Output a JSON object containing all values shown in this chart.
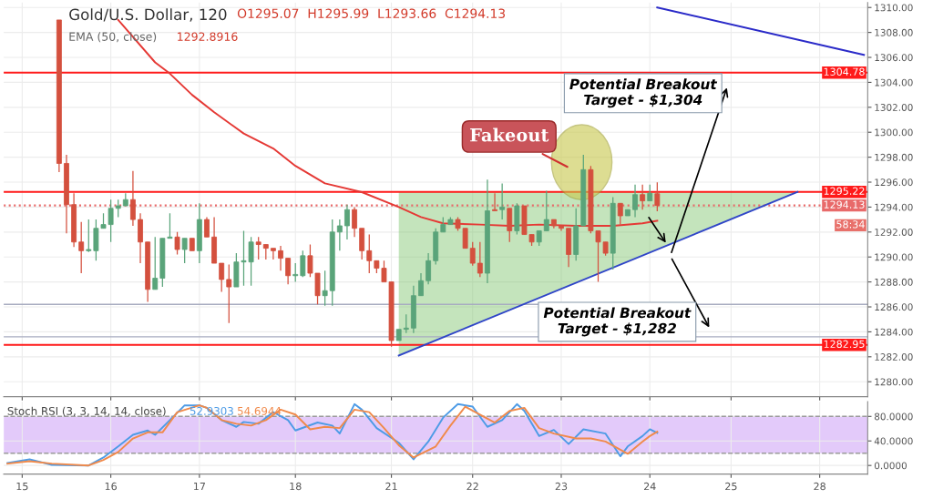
{
  "chart_data": [
    {
      "type": "candlestick",
      "title": "Gold/U.S. Dollar, 120",
      "categories": [
        null,
        null,
        "15",
        null,
        null,
        null,
        null,
        null,
        null,
        null,
        null,
        null,
        null,
        null,
        "16",
        null,
        null,
        null,
        null,
        null,
        null,
        null,
        null,
        null,
        null,
        null,
        "17",
        null,
        null,
        null,
        null,
        null,
        null,
        null,
        null,
        null,
        null,
        null,
        null,
        "18",
        null,
        null,
        null,
        null,
        null,
        null,
        null,
        null,
        null,
        null,
        null,
        null,
        "21",
        null,
        null,
        null,
        null,
        null,
        null,
        null,
        null,
        null,
        null,
        "22",
        null,
        null,
        null,
        null,
        null,
        null,
        null,
        null,
        null,
        null,
        null,
        "23",
        null,
        null,
        null,
        null,
        null,
        null,
        null,
        null,
        null,
        null,
        null,
        "24",
        null,
        null,
        null,
        null,
        null,
        null,
        null,
        null,
        null,
        null,
        "25",
        null,
        null,
        null,
        null,
        null,
        null,
        null,
        null,
        null,
        null,
        null,
        "28",
        null,
        null,
        null,
        null,
        null,
        null
      ],
      "ohlc": [
        null,
        null,
        null,
        null,
        null,
        null,
        null,
        [
          1309.0,
          1309.0,
          1296.8,
          1297.5
        ],
        [
          1297.5,
          1298.2,
          1291.9,
          1294.2
        ],
        [
          1294.2,
          1295.1,
          1290.8,
          1291.2
        ],
        [
          1291.2,
          1292.8,
          1288.7,
          1290.5
        ],
        [
          1290.5,
          1293.0,
          1290.4,
          1290.6
        ],
        [
          1290.5,
          1293.0,
          1289.7,
          1292.3
        ],
        [
          1292.3,
          1293.5,
          1292.3,
          1292.6
        ],
        [
          1292.6,
          1294.6,
          1291.2,
          1293.9
        ],
        [
          1293.9,
          1294.6,
          1293.2,
          1294.1
        ],
        [
          1294.1,
          1295.1,
          1294.1,
          1294.6
        ],
        [
          1294.6,
          1296.9,
          1292.5,
          1293.0
        ],
        [
          1293.0,
          1293.5,
          1289.5,
          1291.2
        ],
        [
          1291.2,
          1291.2,
          1286.4,
          1287.4
        ],
        [
          1287.4,
          1291.6,
          1287.4,
          1288.3
        ],
        [
          1288.3,
          1291.5,
          1287.6,
          1291.5
        ],
        [
          1291.5,
          1293.5,
          1291.5,
          1291.6
        ],
        [
          1291.6,
          1292.0,
          1290.2,
          1290.6
        ],
        [
          1290.6,
          1291.5,
          1289.5,
          1291.5
        ],
        [
          1291.5,
          1291.5,
          1290.5,
          1290.5
        ],
        [
          1290.5,
          1294.3,
          1289.5,
          1293.0
        ],
        [
          1293.0,
          1293.2,
          1291.6,
          1291.6
        ],
        [
          1291.6,
          1293.2,
          1289.5,
          1289.5
        ],
        [
          1289.5,
          1289.5,
          1287.2,
          1288.2
        ],
        [
          1288.2,
          1289.4,
          1284.7,
          1287.6
        ],
        [
          1287.6,
          1290.3,
          1287.6,
          1289.6
        ],
        [
          1289.6,
          1292.1,
          1287.7,
          1289.7
        ],
        [
          1289.6,
          1291.6,
          1287.7,
          1291.2
        ],
        [
          1291.2,
          1291.6,
          1289.8,
          1291.0
        ],
        [
          1291.0,
          1291.0,
          1289.8,
          1290.7
        ],
        [
          1290.7,
          1290.7,
          1289.8,
          1290.5
        ],
        [
          1290.5,
          1290.9,
          1288.9,
          1289.9
        ],
        [
          1289.9,
          1289.9,
          1287.8,
          1288.5
        ],
        [
          1288.5,
          1289.5,
          1288.0,
          1288.6
        ],
        [
          1288.5,
          1290.5,
          1288.4,
          1290.1
        ],
        [
          1290.1,
          1291.0,
          1288.4,
          1288.7
        ],
        [
          1288.7,
          1288.7,
          1286.2,
          1286.9
        ],
        [
          1286.9,
          1288.9,
          1286.1,
          1287.3
        ],
        [
          1287.3,
          1293.0,
          1286.1,
          1292.0
        ],
        [
          1292.0,
          1293.0,
          1290.5,
          1292.5
        ],
        [
          1292.5,
          1294.2,
          1291.4,
          1293.8
        ],
        [
          1293.8,
          1294.0,
          1291.6,
          1292.3
        ],
        [
          1292.3,
          1292.3,
          1289.8,
          1290.5
        ],
        [
          1290.5,
          1291.8,
          1288.7,
          1289.7
        ],
        [
          1289.7,
          1289.7,
          1288.7,
          1289.1
        ],
        [
          1289.1,
          1289.7,
          1288.0,
          1288.0
        ],
        [
          1288.0,
          1288.0,
          1282.8,
          1283.3
        ],
        [
          1283.3,
          1284.2,
          1283.3,
          1284.2
        ],
        [
          1284.2,
          1285.4,
          1283.9,
          1284.3
        ],
        [
          1284.3,
          1287.7,
          1283.9,
          1286.9
        ],
        [
          1286.9,
          1288.7,
          1286.9,
          1288.1
        ],
        [
          1288.1,
          1290.3,
          1287.8,
          1289.7
        ],
        [
          1289.7,
          1292.3,
          1289.4,
          1292.0
        ],
        [
          1292.0,
          1293.2,
          1292.0,
          1292.6
        ],
        [
          1292.6,
          1293.2,
          1292.6,
          1293.0
        ],
        [
          1293.0,
          1293.2,
          1292.1,
          1292.3
        ],
        [
          1292.3,
          1292.3,
          1290.7,
          1290.7
        ],
        [
          1290.7,
          1291.2,
          1289.3,
          1289.5
        ],
        [
          1289.5,
          1291.2,
          1288.4,
          1288.7
        ],
        [
          1288.7,
          1296.2,
          1287.9,
          1293.7
        ],
        [
          1293.8,
          1295.1,
          1293.7,
          1293.7
        ],
        [
          1293.8,
          1295.9,
          1293.0,
          1294.0
        ],
        [
          1293.9,
          1293.9,
          1291.2,
          1292.1
        ],
        [
          1292.1,
          1294.3,
          1291.8,
          1294.1
        ],
        [
          1294.1,
          1294.1,
          1291.8,
          1291.8
        ],
        [
          1291.8,
          1291.8,
          1290.9,
          1291.2
        ],
        [
          1291.2,
          1292.1,
          1290.9,
          1292.1
        ],
        [
          1292.1,
          1295.3,
          1292.1,
          1293.0
        ],
        [
          1293.0,
          1293.0,
          1292.3,
          1292.5
        ],
        [
          1292.5,
          1292.5,
          1292.1,
          1292.3
        ],
        [
          1292.3,
          1292.3,
          1289.2,
          1290.2
        ],
        [
          1290.2,
          1293.9,
          1289.7,
          1292.5
        ],
        [
          1292.5,
          1298.2,
          1292.5,
          1297.0
        ],
        [
          1297.0,
          1297.3,
          1291.9,
          1292.1
        ],
        [
          1292.1,
          1292.1,
          1288.0,
          1291.2
        ],
        [
          1291.2,
          1291.2,
          1290.1,
          1290.3
        ],
        [
          1290.3,
          1294.8,
          1289.0,
          1294.3
        ],
        [
          1294.3,
          1294.3,
          1292.6,
          1293.3
        ],
        [
          1293.3,
          1293.8,
          1293.3,
          1293.8
        ],
        [
          1293.8,
          1295.8,
          1293.2,
          1295.0
        ],
        [
          1295.0,
          1295.8,
          1293.8,
          1294.5
        ],
        [
          1294.5,
          1295.8,
          1294.5,
          1295.1
        ],
        [
          1295.07,
          1295.99,
          1293.66,
          1294.13
        ],
        null,
        null,
        null,
        null,
        null,
        null,
        null,
        null,
        null,
        null,
        null,
        null,
        null,
        null,
        null,
        null,
        null,
        null,
        null,
        null,
        null,
        null,
        null,
        null,
        null,
        null,
        null,
        null
      ],
      "colors": [
        null,
        null,
        null,
        null,
        null,
        null,
        null,
        "#d4503e",
        "#d4503e",
        "#d4503e",
        "#d4503e",
        "#5aa47a",
        "#5aa47a",
        "#5aa47a",
        "#5aa47a",
        "#5aa47a",
        "#5aa47a",
        "#d4503e",
        "#d4503e",
        "#d4503e",
        "#5aa47a",
        "#5aa47a",
        "#5aa47a",
        "#d4503e",
        "#5aa47a",
        "#d4503e",
        "#5aa47a",
        "#d4503e",
        "#d4503e",
        "#d4503e",
        "#d4503e",
        "#5aa47a",
        "#5aa47a",
        "#5aa47a",
        "#d4503e",
        "#d4503e",
        "#d4503e",
        "#d4503e",
        "#d4503e",
        "#5aa47a",
        "#5aa47a",
        "#d4503e",
        "#d4503e",
        "#5aa47a",
        "#5aa47a",
        "#5aa47a",
        "#5aa47a",
        "#d4503e",
        "#d4503e",
        "#d4503e",
        "#d4503e",
        "#d4503e",
        "#d4503e",
        "#5aa47a",
        "#5aa47a",
        "#5aa47a",
        "#5aa47a",
        "#5aa47a",
        "#5aa47a",
        "#5aa47a",
        "#5aa47a",
        "#d4503e",
        "#d4503e",
        "#d4503e",
        "#d4503e",
        "#5aa47a",
        "#d4503e",
        "#5aa47a",
        "#d4503e",
        "#5aa47a",
        "#d4503e",
        "#d4503e",
        "#5aa47a",
        "#5aa47a",
        "#d4503e",
        "#d4503e",
        "#d4503e",
        "#5aa47a",
        "#5aa47a",
        "#d4503e",
        "#d4503e",
        "#d4503e",
        "#5aa47a",
        "#d4503e",
        "#5aa47a",
        "#5aa47a",
        "#d4503e",
        "#5aa47a",
        "#d4503e",
        null,
        null,
        null,
        null,
        null,
        null,
        null,
        null,
        null,
        null,
        null,
        null,
        null,
        null,
        null,
        null,
        null,
        null,
        null,
        null,
        null,
        null,
        null,
        null,
        null,
        null,
        null,
        null
      ],
      "series": [
        {
          "name": "EMA (50, close)",
          "type": "line",
          "color": "#e53935",
          "values": [
            null,
            null,
            null,
            null,
            null,
            null,
            null,
            null,
            null,
            null,
            null,
            null,
            null,
            null,
            null,
            1309.0,
            null,
            null,
            null,
            null,
            1305.6,
            null,
            1304.7,
            null,
            null,
            1303.0,
            null,
            null,
            1301.6,
            null,
            null,
            null,
            1299.9,
            null,
            null,
            null,
            1298.7,
            null,
            null,
            1297.3,
            null,
            null,
            null,
            1295.9,
            null,
            null,
            null,
            null,
            1295.2,
            null,
            null,
            null,
            null,
            1294.0,
            null,
            null,
            1293.2,
            null,
            null,
            1292.7,
            null,
            null,
            null,
            null,
            1292.6,
            null,
            null,
            null,
            1292.5,
            null,
            null,
            null,
            1292.6,
            null,
            null,
            null,
            null,
            1292.5,
            null,
            null,
            null,
            null,
            1292.5,
            null,
            null,
            null,
            1292.7,
            null,
            1292.9,
            null,
            null,
            null,
            null,
            null,
            null,
            null,
            null,
            null,
            null,
            null,
            null,
            null,
            null,
            null,
            null,
            null,
            null,
            null,
            null,
            null,
            null,
            null,
            null,
            null,
            null,
            null,
            null
          ]
        },
        {
          "type": "line",
          "color": "#3046c8",
          "values": [
            null,
            null,
            null,
            null,
            null,
            null,
            null,
            null,
            null,
            null,
            null,
            null,
            null,
            null,
            null,
            null,
            null,
            null,
            null,
            null,
            null,
            null,
            null,
            null,
            null,
            null,
            null,
            null,
            null,
            null,
            null,
            null,
            null,
            null,
            null,
            null,
            null,
            null,
            null,
            null,
            null,
            null,
            null,
            null,
            null,
            null,
            null,
            null,
            null,
            null,
            null,
            null,
            null,
            1282.1,
            null,
            null,
            null,
            null,
            null,
            null,
            null,
            null,
            null,
            null,
            null,
            null,
            null,
            null,
            null,
            null,
            null,
            null,
            null,
            null,
            null,
            null,
            null,
            null,
            null,
            null,
            null,
            null,
            null,
            null,
            null,
            null,
            null,
            null,
            null,
            null,
            null,
            null,
            null,
            null,
            null,
            null,
            null,
            null,
            null,
            null,
            null,
            null,
            null,
            null,
            null,
            null,
            null,
            1295.22,
            null,
            null,
            null,
            null,
            null,
            null,
            null,
            null,
            null
          ],
          "lower": [
            null,
            null,
            null,
            null,
            null,
            null,
            null,
            null,
            null,
            null,
            null,
            null,
            null,
            null,
            null,
            null,
            null,
            null,
            null,
            null,
            null,
            null,
            null,
            null,
            null,
            null,
            null,
            null,
            null,
            null,
            null,
            null,
            null,
            null,
            null,
            null,
            null,
            null,
            null,
            null,
            null,
            null,
            null,
            null,
            null,
            null,
            null,
            null,
            null,
            null,
            null,
            null,
            null,
            1282.1,
            null,
            null,
            null,
            null,
            null,
            null,
            null,
            null,
            null,
            null,
            null,
            null,
            null,
            null,
            null,
            null,
            null,
            null,
            null,
            null,
            null,
            null,
            null,
            null,
            null,
            null,
            null,
            null,
            null,
            null,
            null,
            null,
            null,
            null,
            null,
            null,
            null,
            null,
            null,
            null,
            null,
            null,
            null,
            null,
            null,
            null,
            null,
            null,
            null,
            null,
            null,
            null,
            null,
            1295.22,
            null,
            null,
            null,
            null,
            null,
            null,
            null,
            null,
            null
          ],
          "upper": [
            null,
            null,
            null,
            null,
            null,
            null,
            null,
            null,
            null,
            null,
            null,
            null,
            null,
            null,
            null,
            null,
            null,
            null,
            null,
            null,
            null,
            null,
            null,
            null,
            null,
            null,
            null,
            null,
            null,
            null,
            null,
            null,
            null,
            null,
            null,
            null,
            null,
            null,
            null,
            null,
            null,
            null,
            null,
            null,
            null,
            null,
            null,
            null,
            null,
            null,
            null,
            null,
            null,
            1295.22,
            null,
            null,
            null,
            null,
            null,
            null,
            null,
            null,
            null,
            null,
            null,
            null,
            null,
            null,
            null,
            null,
            null,
            null,
            null,
            null,
            null,
            null,
            null,
            null,
            null,
            null,
            null,
            null,
            null,
            null,
            null,
            null,
            null,
            null,
            null,
            null,
            null,
            null,
            null,
            null,
            null,
            null,
            null,
            null,
            null,
            null,
            null,
            null,
            null,
            null,
            null,
            null,
            null,
            1295.22,
            null,
            null,
            null,
            null,
            null,
            null,
            null,
            null,
            null
          ]
        },
        {
          "type": "line",
          "color": "#2a2ac8",
          "values": [
            null,
            null,
            null,
            null,
            null,
            null,
            null,
            null,
            null,
            null,
            null,
            null,
            null,
            null,
            null,
            null,
            null,
            null,
            null,
            null,
            null,
            null,
            null,
            null,
            null,
            null,
            null,
            null,
            null,
            null,
            null,
            null,
            null,
            null,
            null,
            null,
            null,
            null,
            null,
            null,
            null,
            null,
            null,
            null,
            null,
            null,
            null,
            null,
            null,
            null,
            null,
            null,
            null,
            null,
            null,
            null,
            null,
            null,
            null,
            null,
            null,
            null,
            null,
            null,
            null,
            null,
            null,
            null,
            null,
            null,
            null,
            null,
            null,
            null,
            null,
            null,
            null,
            null,
            null,
            null,
            null,
            null,
            null,
            null,
            null,
            null,
            null,
            null,
            1310.0,
            null,
            null,
            null,
            null,
            null,
            null,
            null,
            null,
            null,
            null,
            null,
            null,
            null,
            null,
            null,
            null,
            null,
            null,
            null,
            null,
            null,
            null,
            null,
            null,
            null,
            null,
            null,
            1306.2
          ]
        }
      ],
      "ref_lines": [
        {
          "axis": "y",
          "value": 1304.78,
          "label": "1304.78",
          "color": "#ff1a1a"
        },
        {
          "axis": "y",
          "value": 1295.22,
          "label": "1295.22",
          "color": "#ff1a1a"
        },
        {
          "axis": "y",
          "value": 1294.13,
          "label": "1294.13",
          "color": "#e86a6a",
          "line_style": "dotted"
        },
        {
          "axis": "y",
          "value": 1286.2,
          "color": "#a8acc0"
        },
        {
          "axis": "y",
          "value": 1283.6,
          "color": "#a8acc0"
        },
        {
          "axis": "y",
          "value": 1282.95,
          "label": "1282.95",
          "color": "#ff1a1a"
        }
      ],
      "annotations": [
        "O1295.07  H1295.99  L1293.66  C1294.13",
        "1292.8916",
        "Fakeout",
        "Potential Breakout\nTarget - $1,304",
        "Potential Breakout\nTarget - $1,282",
        "58:34"
      ],
      "ylim": [
        1278.8,
        1310.4
      ],
      "yticks": [
        {
          "value": 1280,
          "label": "1280.00"
        },
        {
          "value": 1282,
          "label": "1282.00"
        },
        {
          "value": 1284,
          "label": "1284.00"
        },
        {
          "value": 1286,
          "label": "1286.00"
        },
        {
          "value": 1288,
          "label": "1288.00"
        },
        {
          "value": 1290,
          "label": "1290.00"
        },
        {
          "value": 1292,
          "label": "1292.00"
        },
        {
          "value": 1294,
          "label": "1294.00"
        },
        {
          "value": 1296,
          "label": "1296.00"
        },
        {
          "value": 1298,
          "label": "1298.00"
        },
        {
          "value": 1300,
          "label": "1300.00"
        },
        {
          "value": 1302,
          "label": "1302.00"
        },
        {
          "value": 1304,
          "label": "1304.00"
        },
        {
          "value": 1306,
          "label": "1306.00"
        },
        {
          "value": 1308,
          "label": "1308.00"
        },
        {
          "value": 1310,
          "label": "1310.00"
        }
      ],
      "tick_labels": "y",
      "grid": true,
      "legend": false,
      "marker": "none"
    },
    {
      "type": "line",
      "title": "Stoch RSI (3, 3, 14, 14, close)",
      "categories": [
        null,
        null,
        "15",
        null,
        null,
        null,
        null,
        null,
        null,
        null,
        null,
        null,
        null,
        null,
        "16",
        null,
        null,
        null,
        null,
        null,
        null,
        null,
        null,
        null,
        null,
        null,
        "17",
        null,
        null,
        null,
        null,
        null,
        null,
        null,
        null,
        null,
        null,
        null,
        null,
        "18",
        null,
        null,
        null,
        null,
        null,
        null,
        null,
        null,
        null,
        null,
        null,
        null,
        "21",
        null,
        null,
        null,
        null,
        null,
        null,
        null,
        null,
        null,
        null,
        "22",
        null,
        null,
        null,
        null,
        null,
        null,
        null,
        null,
        null,
        null,
        null,
        "23",
        null,
        null,
        null,
        null,
        null,
        null,
        null,
        null,
        null,
        null,
        null,
        "24",
        null,
        null,
        null,
        null,
        null,
        null,
        null,
        null,
        null,
        null,
        "25",
        null,
        null,
        null,
        null,
        null,
        null,
        null,
        null,
        null,
        null,
        null,
        "28",
        null,
        null,
        null,
        null,
        null,
        null
      ],
      "series": [
        {
          "color": "#4d9be6",
          "values": [
            4,
            null,
            null,
            10,
            null,
            null,
            1,
            null,
            null,
            null,
            null,
            0,
            null,
            13,
            null,
            31,
            null,
            50,
            null,
            57,
            50,
            null,
            74,
            null,
            98,
            null,
            98,
            94,
            null,
            74,
            null,
            63,
            71,
            null,
            68,
            null,
            87,
            null,
            74,
            57,
            null,
            null,
            70,
            null,
            65,
            52,
            null,
            100,
            91,
            null,
            61,
            null,
            null,
            37,
            null,
            10,
            null,
            39,
            null,
            78,
            null,
            100,
            null,
            96,
            null,
            63,
            null,
            74,
            null,
            100,
            89,
            null,
            48,
            null,
            58,
            null,
            35,
            null,
            59,
            null,
            null,
            52,
            null,
            15,
            31,
            null,
            48,
            59,
            53,
            null,
            null,
            null,
            null,
            null,
            null,
            null,
            null,
            null,
            null,
            null,
            null,
            null,
            null,
            null,
            null,
            null,
            null,
            null,
            null,
            null,
            null,
            null,
            null,
            null,
            null,
            null,
            null
          ]
        },
        {
          "color": "#f08a4b",
          "values": [
            3,
            null,
            null,
            7,
            null,
            null,
            3,
            null,
            null,
            null,
            null,
            0,
            null,
            9,
            null,
            22,
            null,
            44,
            null,
            54,
            null,
            54,
            null,
            87,
            null,
            null,
            98,
            94,
            null,
            74,
            null,
            68,
            null,
            65,
            null,
            74,
            null,
            91,
            null,
            83,
            null,
            59,
            null,
            63,
            null,
            61,
            null,
            91,
            null,
            87,
            null,
            61,
            null,
            33,
            null,
            13,
            null,
            null,
            31,
            null,
            65,
            null,
            96,
            null,
            83,
            null,
            70,
            null,
            89,
            null,
            94,
            null,
            61,
            null,
            52,
            null,
            null,
            44,
            null,
            44,
            null,
            39,
            null,
            null,
            19,
            null,
            39,
            48,
            55,
            null,
            null,
            null,
            null,
            null,
            null,
            null,
            null,
            null,
            null,
            null,
            null,
            null,
            null,
            null,
            null,
            null,
            null,
            null,
            null,
            null,
            null,
            null,
            null,
            null,
            null,
            null,
            null
          ]
        }
      ],
      "bands": [
        {
          "axis": "y",
          "from": 20,
          "to": 80,
          "color": "#e3cafa"
        }
      ],
      "ref_lines": [
        {
          "axis": "y",
          "value": 80,
          "color": "#9a9a9a",
          "line_style": "dashed"
        },
        {
          "axis": "y",
          "value": 20,
          "color": "#9a9a9a",
          "line_style": "dashed"
        }
      ],
      "annotations": [
        "52.9303",
        "54.6944"
      ],
      "ylim": [
        -14,
        104
      ],
      "yticks": [
        {
          "value": 0,
          "label": "0.0000"
        },
        {
          "value": 40,
          "label": "40.0000"
        },
        {
          "value": 80,
          "label": "80.0000"
        }
      ],
      "grid": true,
      "legend": false,
      "marker": "none"
    }
  ]
}
